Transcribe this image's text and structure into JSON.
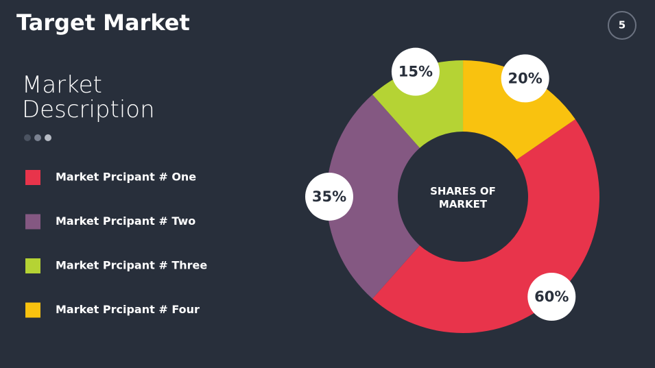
{
  "page_number": "5",
  "chart_data": {
    "type": "donut",
    "title": "Target Market",
    "subtitle": "Market Description",
    "center_label": "SHARES OF MARKET",
    "categories": [
      "Market Prcipant # One",
      "Market Prcipant # Two",
      "Market Prcipant # Three",
      "Market Prcipant # Four"
    ],
    "values": [
      60,
      35,
      15,
      20
    ],
    "value_labels": [
      "60%",
      "35%",
      "15%",
      "20%"
    ],
    "colors": [
      "#e8344b",
      "#845882",
      "#b5d334",
      "#f9c20f"
    ]
  }
}
